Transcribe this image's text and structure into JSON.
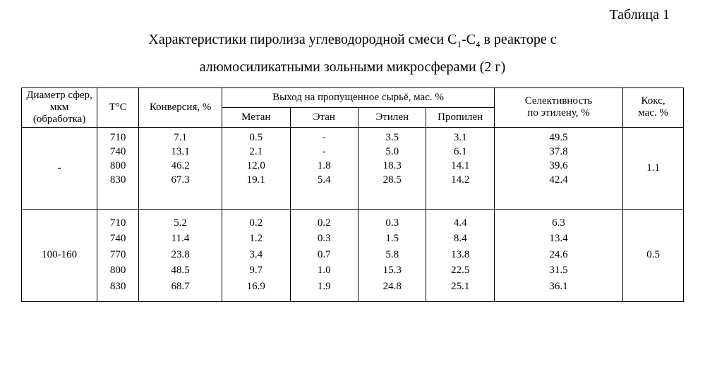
{
  "table_label": "Таблица 1",
  "title_line1_pre": "Характеристики пиролиза углеводородной смеси С",
  "title_line1_sub1": "1",
  "title_line1_mid": "-С",
  "title_line1_sub2": "4",
  "title_line1_post": " в реакторе с",
  "title_line2": "алюмосиликатными зольными микросферами (2 г)",
  "headers": {
    "diameter": "Диаметр сфер,\nмкм\n(обработка)",
    "tc": "Т°С",
    "conversion": "Конверсия, %",
    "yield_group": "Выход на пропущенное сырьё, мас. %",
    "methane": "Метан",
    "ethane": "Этан",
    "ethylene": "Этилен",
    "propylene": "Пропилен",
    "selectivity": "Селективность\nпо этилену, %",
    "coke": "Кокс,\nмас. %"
  },
  "group1": {
    "diameter": "-",
    "tc": "710\n740\n800\n830",
    "conversion": "7.1\n13.1\n46.2\n67.3",
    "methane": "0.5\n2.1\n12.0\n19.1",
    "ethane": "-\n-\n1.8\n5.4",
    "ethylene": "3.5\n5.0\n18.3\n28.5",
    "propylene": "3.1\n6.1\n14.1\n14.2",
    "selectivity": "49.5\n37.8\n39.6\n42.4",
    "coke": "1.1"
  },
  "group2": {
    "diameter": "100-160",
    "tc": "710\n740\n770\n800\n830",
    "conversion": "5.2\n11.4\n23.8\n48.5\n68.7",
    "methane": "0.2\n1.2\n3.4\n9.7\n16.9",
    "ethane": "0.2\n0.3\n0.7\n1.0\n1.9",
    "ethylene": "0.3\n1.5\n5.8\n15.3\n24.8",
    "propylene": "4.4\n8.4\n13.8\n22.5\n25.1",
    "selectivity": "6.3\n13.4\n24.6\n31.5\n36.1",
    "coke": "0.5"
  }
}
